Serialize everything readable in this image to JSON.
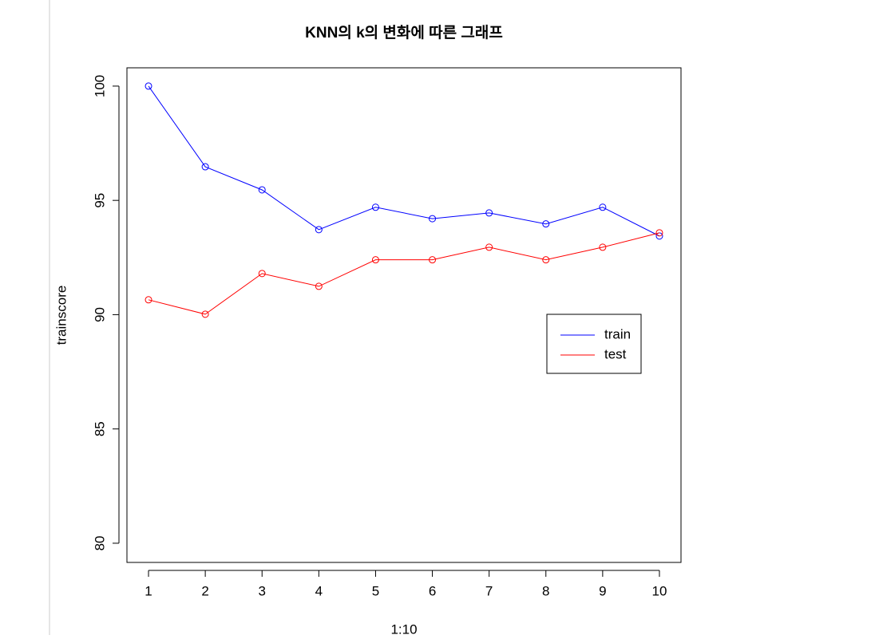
{
  "chart_data": {
    "type": "line",
    "title": "KNN의 k의 변화에 따른 그래프",
    "x_label": "1:10",
    "y_label": "trainscore",
    "x": [
      1,
      2,
      3,
      4,
      5,
      6,
      7,
      8,
      9,
      10
    ],
    "series": [
      {
        "name": "train",
        "color": "#0000ff",
        "values": [
          100,
          96.47,
          95.46,
          93.72,
          94.7,
          94.2,
          94.45,
          93.97,
          94.7,
          93.44
        ]
      },
      {
        "name": "test",
        "color": "#ff0000",
        "values": [
          90.65,
          90.02,
          91.8,
          91.24,
          92.4,
          92.4,
          92.95,
          92.4,
          92.95,
          93.58
        ]
      }
    ],
    "xlim": [
      0.62,
      10.38
    ],
    "ylim": [
      79.16,
      100.8
    ],
    "xticks": [
      1,
      2,
      3,
      4,
      5,
      6,
      7,
      8,
      9,
      10
    ],
    "yticks": [
      80,
      85,
      90,
      95,
      100
    ],
    "legend": "right"
  }
}
